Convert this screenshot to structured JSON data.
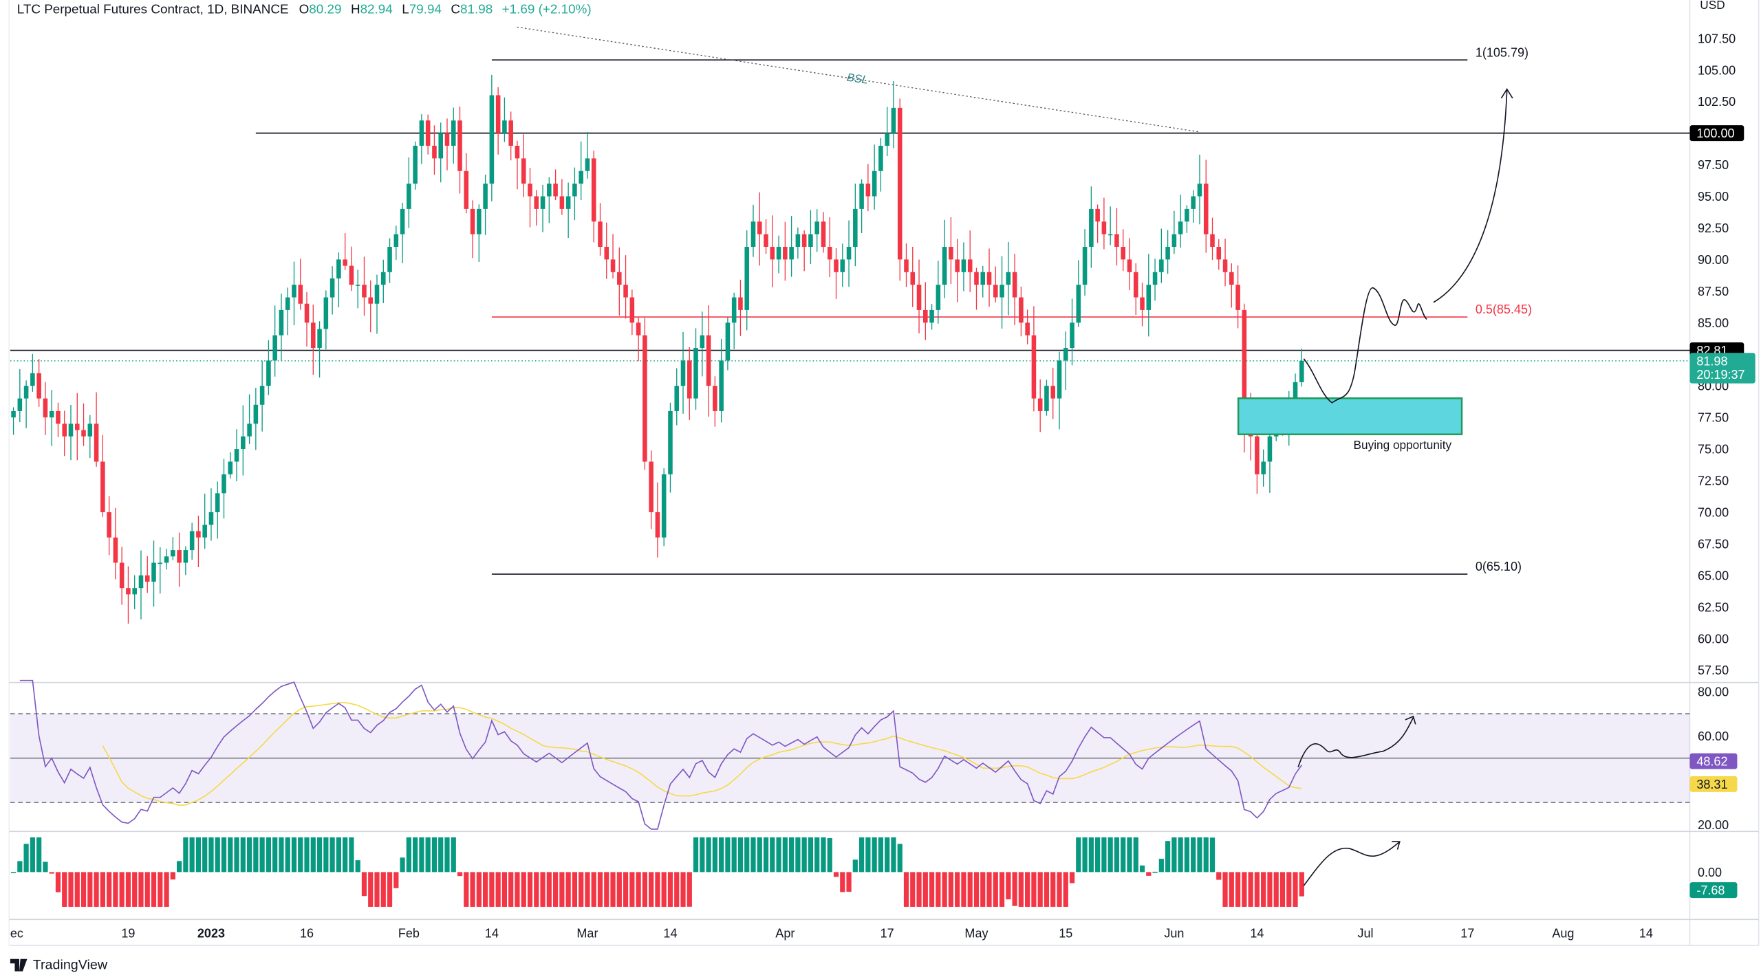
{
  "header": {
    "symbol": "LTC Perpetual Futures Contract, 1D, BINANCE",
    "o_label": "O",
    "o": "80.29",
    "h_label": "H",
    "h": "82.94",
    "l_label": "L",
    "l": "79.94",
    "c_label": "C",
    "c": "81.98",
    "change": "+1.69 (+2.10%)"
  },
  "currency": "USD",
  "branding": "TradingView",
  "colors": {
    "up": "#089981",
    "down": "#f23645",
    "rsi": "#7e57c2",
    "rsi_ma": "#f5d94a",
    "zone": "#5ed6e0",
    "accent": "#22ab94"
  },
  "chart_data": [
    {
      "type": "candlestick",
      "start_date": "2022-12-01",
      "interval": "1D",
      "closes": [
        78,
        79,
        80,
        81,
        79,
        77.5,
        78,
        77,
        76,
        77,
        76.5,
        76,
        77,
        74,
        70,
        68,
        66,
        64,
        63.5,
        64,
        65,
        64.5,
        66,
        66,
        66.5,
        67,
        66,
        67,
        68.5,
        68,
        69,
        70,
        71.5,
        73,
        74,
        75,
        76,
        77,
        78.5,
        80,
        82,
        84,
        86,
        87,
        88,
        86.5,
        85,
        83,
        84.5,
        87,
        88.5,
        90,
        89.5,
        88,
        88,
        87,
        86.5,
        88,
        89,
        91,
        92,
        94,
        96,
        99,
        101,
        99,
        98,
        100,
        99,
        101,
        97,
        94,
        92,
        94,
        96,
        103,
        100,
        101,
        99,
        98,
        96,
        95,
        94,
        95,
        96,
        95,
        94,
        95,
        96,
        97,
        98,
        93,
        91,
        90,
        89,
        88,
        87,
        85,
        84,
        74,
        70,
        68,
        73,
        78,
        80,
        82,
        79,
        83,
        84,
        80,
        78,
        82,
        85,
        87,
        86,
        91,
        93,
        92,
        91,
        90,
        91,
        90,
        91,
        92,
        91,
        92,
        93,
        91,
        90,
        89,
        90,
        91,
        94,
        96,
        95,
        97,
        99,
        100,
        102,
        90,
        89,
        88,
        86,
        85,
        86,
        88,
        91,
        90,
        89,
        90,
        89,
        88,
        89,
        88,
        87,
        88,
        89,
        87,
        85,
        84,
        79,
        78,
        80,
        79,
        82,
        83,
        85,
        88,
        91,
        94,
        93,
        92,
        92,
        91,
        90,
        89,
        87,
        86,
        88,
        89,
        90,
        91,
        92,
        93,
        94,
        95,
        96,
        92,
        91,
        90,
        89,
        88,
        86,
        77,
        76,
        73,
        74,
        76,
        77,
        77.5,
        78,
        80.29,
        81.98
      ],
      "last_candle": {
        "open": 80.29,
        "high": 82.94,
        "low": 79.94,
        "close": 81.98
      },
      "ylim": [
        56,
        109
      ],
      "y_ticks": [
        "107.50",
        "105.00",
        "102.50",
        "97.50",
        "95.00",
        "92.50",
        "90.00",
        "87.50",
        "85.00",
        "80.00",
        "77.50",
        "75.00",
        "72.50",
        "70.00",
        "67.50",
        "65.00",
        "62.50",
        "60.00",
        "57.50"
      ],
      "x_ticks": [
        {
          "label": "ec",
          "date": "2022-12-01",
          "bold": false
        },
        {
          "label": "19",
          "date": "2022-12-19",
          "bold": false
        },
        {
          "label": "2023",
          "date": "2023-01-01",
          "bold": true
        },
        {
          "label": "16",
          "date": "2023-01-16",
          "bold": false
        },
        {
          "label": "Feb",
          "date": "2023-02-01",
          "bold": false
        },
        {
          "label": "14",
          "date": "2023-02-14",
          "bold": false
        },
        {
          "label": "Mar",
          "date": "2023-03-01",
          "bold": false
        },
        {
          "label": "14",
          "date": "2023-03-14",
          "bold": false
        },
        {
          "label": "Apr",
          "date": "2023-04-01",
          "bold": false
        },
        {
          "label": "17",
          "date": "2023-04-17",
          "bold": false
        },
        {
          "label": "May",
          "date": "2023-05-01",
          "bold": false
        },
        {
          "label": "15",
          "date": "2023-05-15",
          "bold": false
        },
        {
          "label": "Jun",
          "date": "2023-06-01",
          "bold": false
        },
        {
          "label": "14",
          "date": "2023-06-14",
          "bold": false
        },
        {
          "label": "Jul",
          "date": "2023-07-01",
          "bold": false
        },
        {
          "label": "17",
          "date": "2023-07-17",
          "bold": false
        },
        {
          "label": "Aug",
          "date": "2023-08-01",
          "bold": false
        },
        {
          "label": "14",
          "date": "2023-08-14",
          "bold": false
        }
      ],
      "levels": [
        {
          "price": 105.79,
          "label": "1(105.79)",
          "color": "#131722",
          "from": "2023-02-14",
          "to": "2023-07-17"
        },
        {
          "price": 85.45,
          "label": "0.5(85.45)",
          "color": "#f23645",
          "from": "2023-02-14",
          "to": "2023-07-17"
        },
        {
          "price": 65.1,
          "label": "0(65.10)",
          "color": "#131722",
          "from": "2023-02-14",
          "to": "2023-07-17"
        },
        {
          "price": 100.0,
          "label": "100.00",
          "color": "#131722",
          "from": "2023-01-08",
          "to": "axis"
        },
        {
          "price": 82.81,
          "label": "82.81",
          "color": "#131722",
          "from": "2022-12-01",
          "to": "axis"
        }
      ],
      "last_price_badge": {
        "price": "81.98",
        "countdown": "20:19:37"
      },
      "annotations": {
        "bsl": "BSL",
        "zone_label": "Buying opportunity",
        "zone_range": [
          76.0,
          79.0
        ]
      }
    },
    {
      "type": "line",
      "name": "RSI",
      "ylim": [
        15,
        85
      ],
      "bands": [
        70,
        30,
        50
      ],
      "y_ticks": [
        "80.00",
        "60.00",
        "20.00"
      ],
      "rsi_value": "48.62",
      "rsi_ma_value": "38.31"
    },
    {
      "type": "bar",
      "name": "MACD histogram",
      "y_ticks": [
        "0.00"
      ],
      "value": "-7.68"
    }
  ]
}
